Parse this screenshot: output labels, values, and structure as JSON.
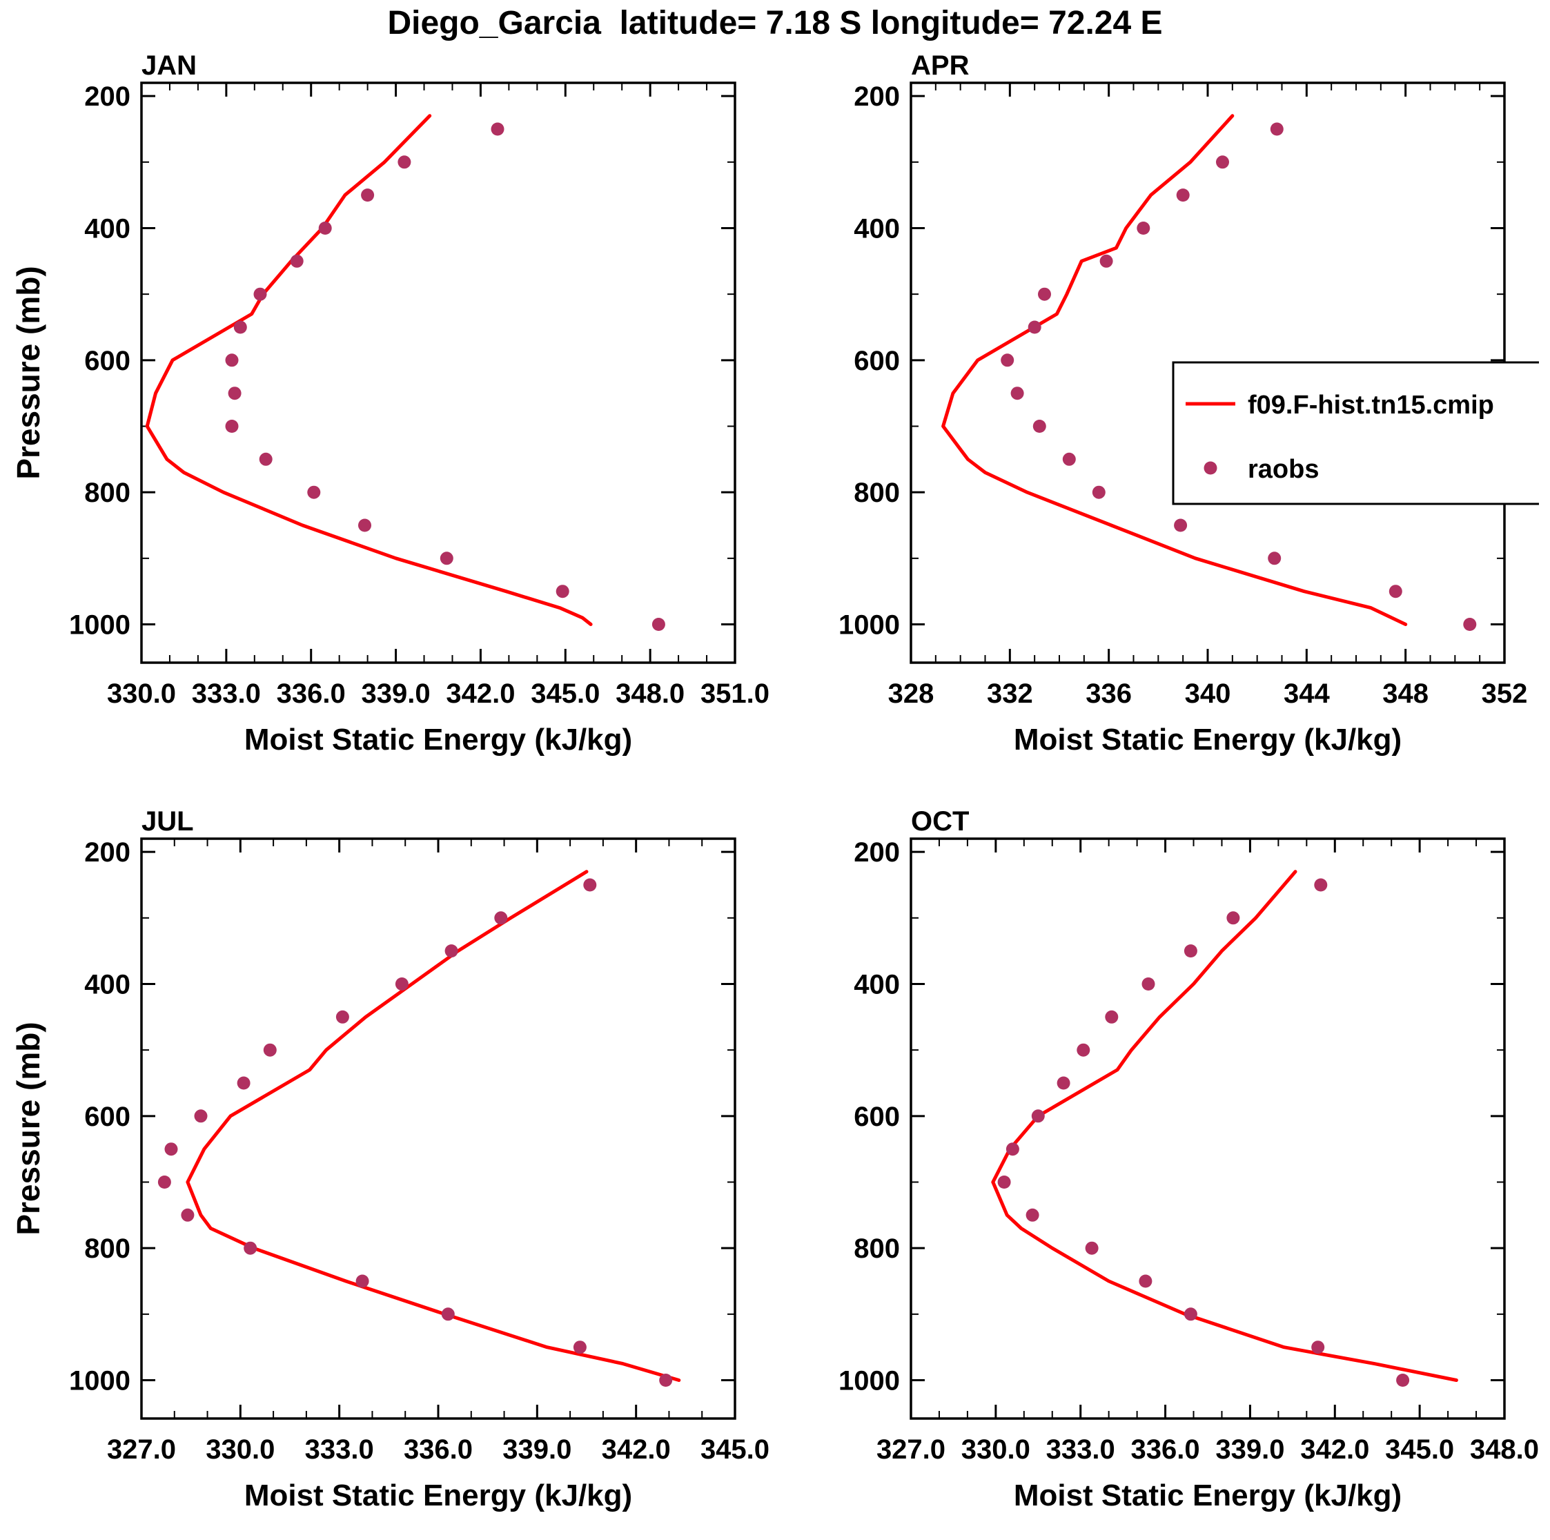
{
  "title": "Diego_Garcia  latitude= 7.18 S longitude= 72.24 E",
  "ylabel": "Pressure (mb)",
  "xlabel": "Moist Static Energy (kJ/kg)",
  "colors": {
    "model_line": "#ff0000",
    "raobs_dot": "#b03060",
    "axis": "#000000"
  },
  "legend": {
    "line_label": "f09.F-hist.tn15.cmip",
    "dot_label": "raobs"
  },
  "chart_data": [
    {
      "type": "line",
      "panel": "JAN",
      "xlabel": "Moist Static Energy (kJ/kg)",
      "ylabel": "Pressure (mb)",
      "xlim": [
        330.0,
        351.0
      ],
      "xticks": [
        330,
        333,
        336,
        339,
        342,
        345,
        348,
        351
      ],
      "xtick_labels": [
        "330.0",
        "333.0",
        "336.0",
        "339.0",
        "342.0",
        "345.0",
        "348.0",
        "351.0"
      ],
      "xminor_step": 1,
      "ylim": [
        180,
        1058
      ],
      "yticks": [
        200,
        400,
        600,
        800,
        1000
      ],
      "ytick_labels": [
        "200",
        "400",
        "600",
        "800",
        "1000"
      ],
      "yticks_minor": [
        300,
        500,
        700,
        900
      ],
      "legend": false,
      "series": [
        {
          "name": "f09.F-hist.tn15.cmip",
          "kind": "line",
          "color": "#ff0000",
          "points": [
            [
              230,
              340.2
            ],
            [
              300,
              338.6
            ],
            [
              350,
              337.2
            ],
            [
              400,
              336.4
            ],
            [
              450,
              335.3
            ],
            [
              500,
              334.3
            ],
            [
              530,
              333.9
            ],
            [
              600,
              331.1
            ],
            [
              650,
              330.5
            ],
            [
              700,
              330.2
            ],
            [
              750,
              330.9
            ],
            [
              770,
              331.5
            ],
            [
              800,
              332.9
            ],
            [
              850,
              335.7
            ],
            [
              900,
              339.0
            ],
            [
              950,
              342.9
            ],
            [
              975,
              344.8
            ],
            [
              990,
              345.6
            ],
            [
              1000,
              345.9
            ]
          ]
        },
        {
          "name": "raobs",
          "kind": "scatter",
          "color": "#b03060",
          "points": [
            [
              250,
              342.6
            ],
            [
              300,
              339.3
            ],
            [
              350,
              338.0
            ],
            [
              400,
              336.5
            ],
            [
              450,
              335.5
            ],
            [
              500,
              334.2
            ],
            [
              550,
              333.5
            ],
            [
              600,
              333.2
            ],
            [
              650,
              333.3
            ],
            [
              700,
              333.2
            ],
            [
              750,
              334.4
            ],
            [
              800,
              336.1
            ],
            [
              850,
              337.9
            ],
            [
              900,
              340.8
            ],
            [
              950,
              344.9
            ],
            [
              1000,
              348.3
            ]
          ]
        }
      ]
    },
    {
      "type": "line",
      "panel": "APR",
      "xlabel": "Moist Static Energy (kJ/kg)",
      "ylabel": "Pressure (mb)",
      "xlim": [
        328,
        352
      ],
      "xticks": [
        328,
        332,
        336,
        340,
        344,
        348,
        352
      ],
      "xtick_labels": [
        "328",
        "332",
        "336",
        "340",
        "344",
        "348",
        "352"
      ],
      "xminor_step": 1,
      "ylim": [
        180,
        1058
      ],
      "yticks": [
        200,
        400,
        600,
        800,
        1000
      ],
      "ytick_labels": [
        "200",
        "400",
        "600",
        "800",
        "1000"
      ],
      "yticks_minor": [
        300,
        500,
        700,
        900
      ],
      "legend": true,
      "series": [
        {
          "name": "f09.F-hist.tn15.cmip",
          "kind": "line",
          "color": "#ff0000",
          "points": [
            [
              230,
              341.0
            ],
            [
              300,
              339.3
            ],
            [
              350,
              337.7
            ],
            [
              400,
              336.7
            ],
            [
              430,
              336.3
            ],
            [
              450,
              334.9
            ],
            [
              500,
              334.3
            ],
            [
              530,
              333.9
            ],
            [
              600,
              330.7
            ],
            [
              650,
              329.7
            ],
            [
              700,
              329.3
            ],
            [
              750,
              330.3
            ],
            [
              770,
              331.0
            ],
            [
              800,
              332.7
            ],
            [
              850,
              336.1
            ],
            [
              900,
              339.5
            ],
            [
              950,
              343.9
            ],
            [
              975,
              346.6
            ],
            [
              1000,
              348.0
            ]
          ]
        },
        {
          "name": "raobs",
          "kind": "scatter",
          "color": "#b03060",
          "points": [
            [
              250,
              342.8
            ],
            [
              300,
              340.6
            ],
            [
              350,
              339.0
            ],
            [
              400,
              337.4
            ],
            [
              450,
              335.9
            ],
            [
              500,
              333.4
            ],
            [
              550,
              333.0
            ],
            [
              600,
              331.9
            ],
            [
              650,
              332.3
            ],
            [
              700,
              333.2
            ],
            [
              750,
              334.4
            ],
            [
              800,
              335.6
            ],
            [
              850,
              338.9
            ],
            [
              900,
              342.7
            ],
            [
              950,
              347.6
            ],
            [
              1000,
              350.6
            ]
          ]
        }
      ]
    },
    {
      "type": "line",
      "panel": "JUL",
      "xlabel": "Moist Static Energy (kJ/kg)",
      "ylabel": "Pressure (mb)",
      "xlim": [
        327.0,
        345.0
      ],
      "xticks": [
        327,
        330,
        333,
        336,
        339,
        342,
        345
      ],
      "xtick_labels": [
        "327.0",
        "330.0",
        "333.0",
        "336.0",
        "339.0",
        "342.0",
        "345.0"
      ],
      "xminor_step": 1,
      "ylim": [
        180,
        1058
      ],
      "yticks": [
        200,
        400,
        600,
        800,
        1000
      ],
      "ytick_labels": [
        "200",
        "400",
        "600",
        "800",
        "1000"
      ],
      "yticks_minor": [
        300,
        500,
        700,
        900
      ],
      "legend": false,
      "series": [
        {
          "name": "f09.F-hist.tn15.cmip",
          "kind": "line",
          "color": "#ff0000",
          "points": [
            [
              230,
              340.5
            ],
            [
              300,
              338.2
            ],
            [
              350,
              336.6
            ],
            [
              400,
              335.2
            ],
            [
              450,
              333.8
            ],
            [
              500,
              332.6
            ],
            [
              530,
              332.1
            ],
            [
              600,
              329.7
            ],
            [
              650,
              328.9
            ],
            [
              700,
              328.4
            ],
            [
              750,
              328.8
            ],
            [
              770,
              329.1
            ],
            [
              800,
              330.4
            ],
            [
              850,
              333.2
            ],
            [
              900,
              336.2
            ],
            [
              950,
              339.3
            ],
            [
              975,
              341.6
            ],
            [
              1000,
              343.3
            ]
          ]
        },
        {
          "name": "raobs",
          "kind": "scatter",
          "color": "#b03060",
          "points": [
            [
              250,
              340.6
            ],
            [
              300,
              337.9
            ],
            [
              350,
              336.4
            ],
            [
              400,
              334.9
            ],
            [
              450,
              333.1
            ],
            [
              500,
              330.9
            ],
            [
              550,
              330.1
            ],
            [
              600,
              328.8
            ],
            [
              650,
              327.9
            ],
            [
              700,
              327.7
            ],
            [
              750,
              328.4
            ],
            [
              800,
              330.3
            ],
            [
              850,
              333.7
            ],
            [
              900,
              336.3
            ],
            [
              950,
              340.3
            ],
            [
              1000,
              342.9
            ]
          ]
        }
      ]
    },
    {
      "type": "line",
      "panel": "OCT",
      "xlabel": "Moist Static Energy (kJ/kg)",
      "ylabel": "Pressure (mb)",
      "xlim": [
        327.0,
        348.0
      ],
      "xticks": [
        327,
        330,
        333,
        336,
        339,
        342,
        345,
        348
      ],
      "xtick_labels": [
        "327.0",
        "330.0",
        "333.0",
        "336.0",
        "339.0",
        "342.0",
        "345.0",
        "348.0"
      ],
      "xminor_step": 1,
      "ylim": [
        180,
        1058
      ],
      "yticks": [
        200,
        400,
        600,
        800,
        1000
      ],
      "ytick_labels": [
        "200",
        "400",
        "600",
        "800",
        "1000"
      ],
      "yticks_minor": [
        300,
        500,
        700,
        900
      ],
      "legend": false,
      "series": [
        {
          "name": "f09.F-hist.tn15.cmip",
          "kind": "line",
          "color": "#ff0000",
          "points": [
            [
              230,
              340.6
            ],
            [
              300,
              339.2
            ],
            [
              350,
              338.0
            ],
            [
              400,
              337.0
            ],
            [
              450,
              335.8
            ],
            [
              500,
              334.8
            ],
            [
              530,
              334.3
            ],
            [
              600,
              331.5
            ],
            [
              650,
              330.5
            ],
            [
              700,
              329.9
            ],
            [
              750,
              330.4
            ],
            [
              770,
              330.9
            ],
            [
              800,
              332.0
            ],
            [
              850,
              334.0
            ],
            [
              900,
              336.7
            ],
            [
              950,
              340.2
            ],
            [
              975,
              343.4
            ],
            [
              1000,
              346.3
            ]
          ]
        },
        {
          "name": "raobs",
          "kind": "scatter",
          "color": "#b03060",
          "points": [
            [
              250,
              341.5
            ],
            [
              300,
              338.4
            ],
            [
              350,
              336.9
            ],
            [
              400,
              335.4
            ],
            [
              450,
              334.1
            ],
            [
              500,
              333.1
            ],
            [
              550,
              332.4
            ],
            [
              600,
              331.5
            ],
            [
              650,
              330.6
            ],
            [
              700,
              330.3
            ],
            [
              750,
              331.3
            ],
            [
              800,
              333.4
            ],
            [
              850,
              335.3
            ],
            [
              900,
              336.9
            ],
            [
              950,
              341.4
            ],
            [
              1000,
              344.4
            ]
          ]
        }
      ]
    }
  ]
}
